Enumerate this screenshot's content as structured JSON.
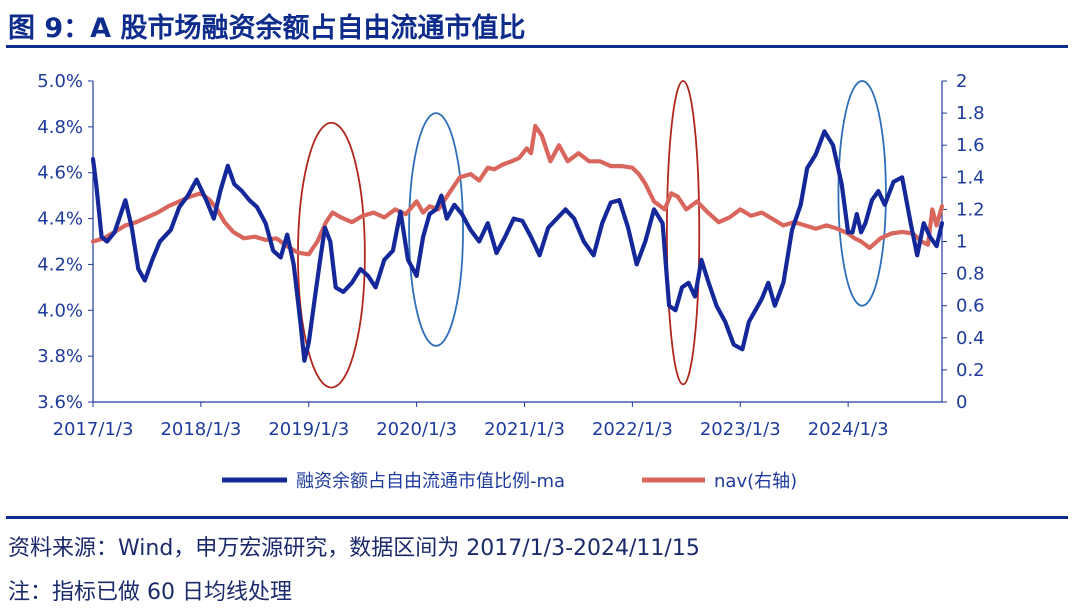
{
  "title": "图 9：A 股市场融资余额占自由流通市值比",
  "source": "资料来源：Wind，申万宏源研究，数据区间为 2017/1/3-2024/11/15",
  "note": "注：指标已做 60 日均线处理",
  "colors": {
    "title": "#0d2c8c",
    "margin_ratio": "#14289a",
    "nav": "#d9665d",
    "red_ellipse": "#b0271d",
    "blue_ellipse": "#2e6fb8",
    "axis": "#1f3b9c"
  },
  "chart_data": {
    "type": "line",
    "x_ticks": [
      "2017/1/3",
      "2018/1/3",
      "2019/1/3",
      "2020/1/3",
      "2021/1/3",
      "2022/1/3",
      "2023/1/3",
      "2024/1/3"
    ],
    "x_range": [
      2017.0,
      2024.87
    ],
    "left_axis": {
      "ticks": [
        "3.6%",
        "3.8%",
        "4.0%",
        "4.2%",
        "4.4%",
        "4.6%",
        "4.8%",
        "5.0%"
      ],
      "range": [
        3.6,
        5.0
      ]
    },
    "right_axis": {
      "ticks": [
        "0",
        "0.2",
        "0.4",
        "0.6",
        "0.8",
        "1",
        "1.2",
        "1.4",
        "1.6",
        "1.8",
        "2"
      ],
      "range": [
        0,
        2
      ]
    },
    "series": [
      {
        "name": "融资余额占自由流通市值比例-ma",
        "axis": "left",
        "x": [
          2017.0,
          2017.03,
          2017.08,
          2017.13,
          2017.2,
          2017.3,
          2017.36,
          2017.42,
          2017.48,
          2017.55,
          2017.62,
          2017.72,
          2017.8,
          2017.88,
          2017.96,
          2018.05,
          2018.12,
          2018.18,
          2018.25,
          2018.31,
          2018.38,
          2018.45,
          2018.52,
          2018.6,
          2018.67,
          2018.74,
          2018.8,
          2018.86,
          2018.92,
          2018.96,
          2019.0,
          2019.05,
          2019.1,
          2019.15,
          2019.2,
          2019.25,
          2019.32,
          2019.4,
          2019.48,
          2019.55,
          2019.62,
          2019.7,
          2019.78,
          2019.85,
          2019.92,
          2020.0,
          2020.06,
          2020.12,
          2020.18,
          2020.23,
          2020.28,
          2020.35,
          2020.42,
          2020.5,
          2020.58,
          2020.66,
          2020.74,
          2020.82,
          2020.9,
          2020.98,
          2021.06,
          2021.14,
          2021.22,
          2021.3,
          2021.38,
          2021.46,
          2021.55,
          2021.64,
          2021.72,
          2021.8,
          2021.88,
          2021.96,
          2022.04,
          2022.12,
          2022.2,
          2022.28,
          2022.34,
          2022.4,
          2022.46,
          2022.52,
          2022.58,
          2022.64,
          2022.7,
          2022.78,
          2022.86,
          2022.94,
          2023.02,
          2023.08,
          2023.14,
          2023.2,
          2023.26,
          2023.32,
          2023.4,
          2023.48,
          2023.56,
          2023.62,
          2023.7,
          2023.78,
          2023.86,
          2023.94,
          2024.0,
          2024.04,
          2024.08,
          2024.12,
          2024.16,
          2024.22,
          2024.28,
          2024.34,
          2024.42,
          2024.5,
          2024.58,
          2024.64,
          2024.7,
          2024.76,
          2024.82,
          2024.87
        ],
        "values": [
          4.66,
          4.55,
          4.32,
          4.3,
          4.34,
          4.48,
          4.36,
          4.18,
          4.13,
          4.22,
          4.3,
          4.35,
          4.45,
          4.5,
          4.57,
          4.48,
          4.4,
          4.52,
          4.63,
          4.55,
          4.52,
          4.48,
          4.45,
          4.38,
          4.26,
          4.23,
          4.33,
          4.2,
          3.96,
          3.78,
          3.86,
          4.03,
          4.2,
          4.36,
          4.3,
          4.1,
          4.08,
          4.12,
          4.18,
          4.15,
          4.1,
          4.22,
          4.26,
          4.43,
          4.22,
          4.15,
          4.32,
          4.42,
          4.44,
          4.5,
          4.4,
          4.46,
          4.42,
          4.35,
          4.3,
          4.38,
          4.25,
          4.32,
          4.4,
          4.39,
          4.32,
          4.24,
          4.36,
          4.4,
          4.44,
          4.4,
          4.3,
          4.24,
          4.38,
          4.47,
          4.48,
          4.36,
          4.2,
          4.3,
          4.44,
          4.38,
          4.02,
          4.0,
          4.1,
          4.12,
          4.06,
          4.22,
          4.13,
          4.02,
          3.95,
          3.85,
          3.83,
          3.95,
          4.0,
          4.05,
          4.12,
          4.02,
          4.12,
          4.35,
          4.46,
          4.62,
          4.68,
          4.78,
          4.72,
          4.55,
          4.34,
          4.34,
          4.42,
          4.34,
          4.38,
          4.48,
          4.52,
          4.46,
          4.56,
          4.58,
          4.38,
          4.24,
          4.38,
          4.32,
          4.28,
          4.38
        ]
      },
      {
        "name": "nav(右轴)",
        "axis": "right",
        "x": [
          2017.0,
          2017.1,
          2017.2,
          2017.3,
          2017.4,
          2017.5,
          2017.6,
          2017.7,
          2017.8,
          2017.9,
          2018.0,
          2018.08,
          2018.15,
          2018.22,
          2018.3,
          2018.4,
          2018.5,
          2018.6,
          2018.7,
          2018.8,
          2018.9,
          2019.0,
          2019.08,
          2019.16,
          2019.22,
          2019.3,
          2019.4,
          2019.5,
          2019.6,
          2019.7,
          2019.8,
          2019.9,
          2020.0,
          2020.06,
          2020.12,
          2020.2,
          2020.3,
          2020.4,
          2020.5,
          2020.58,
          2020.66,
          2020.72,
          2020.8,
          2020.88,
          2020.95,
          2021.02,
          2021.06,
          2021.1,
          2021.16,
          2021.24,
          2021.32,
          2021.4,
          2021.5,
          2021.6,
          2021.7,
          2021.8,
          2021.9,
          2022.0,
          2022.06,
          2022.12,
          2022.2,
          2022.3,
          2022.36,
          2022.42,
          2022.5,
          2022.6,
          2022.7,
          2022.8,
          2022.9,
          2023.0,
          2023.1,
          2023.2,
          2023.3,
          2023.4,
          2023.5,
          2023.6,
          2023.7,
          2023.8,
          2023.9,
          2024.0,
          2024.06,
          2024.12,
          2024.2,
          2024.3,
          2024.4,
          2024.5,
          2024.6,
          2024.68,
          2024.74,
          2024.78,
          2024.82,
          2024.87
        ],
        "values": [
          1.0,
          1.02,
          1.06,
          1.1,
          1.12,
          1.15,
          1.18,
          1.22,
          1.25,
          1.28,
          1.3,
          1.26,
          1.2,
          1.12,
          1.06,
          1.02,
          1.03,
          1.01,
          1.02,
          0.97,
          0.93,
          0.92,
          1.0,
          1.12,
          1.18,
          1.15,
          1.12,
          1.16,
          1.18,
          1.15,
          1.2,
          1.17,
          1.25,
          1.18,
          1.22,
          1.2,
          1.3,
          1.4,
          1.42,
          1.38,
          1.46,
          1.45,
          1.48,
          1.5,
          1.52,
          1.58,
          1.55,
          1.72,
          1.66,
          1.5,
          1.6,
          1.5,
          1.55,
          1.5,
          1.5,
          1.47,
          1.47,
          1.46,
          1.42,
          1.36,
          1.25,
          1.2,
          1.3,
          1.28,
          1.2,
          1.25,
          1.18,
          1.12,
          1.15,
          1.2,
          1.16,
          1.18,
          1.14,
          1.1,
          1.12,
          1.1,
          1.08,
          1.1,
          1.08,
          1.05,
          1.02,
          1.0,
          0.96,
          1.02,
          1.05,
          1.06,
          1.05,
          1.0,
          0.98,
          1.2,
          1.1,
          1.22
        ]
      }
    ],
    "legend": [
      "融资余额占自由流通市值比例-ma",
      "nav(右轴)"
    ],
    "legend_position": "bottom",
    "annotations": [
      {
        "shape": "ellipse",
        "color": "red",
        "x_from": 2018.9,
        "x_to": 2019.52,
        "y_top_right": 1.74,
        "y_bottom_right": 0.09
      },
      {
        "shape": "ellipse",
        "color": "blue",
        "x_from": 2019.93,
        "x_to": 2020.43,
        "y_top_right": 1.8,
        "y_bottom_right": 0.35
      },
      {
        "shape": "ellipse",
        "color": "red",
        "x_from": 2022.32,
        "x_to": 2022.62,
        "y_top_right": 2.0,
        "y_bottom_right": 0.11
      },
      {
        "shape": "ellipse",
        "color": "blue",
        "x_from": 2023.91,
        "x_to": 2024.35,
        "y_top_right": 2.0,
        "y_bottom_right": 0.6
      }
    ]
  }
}
